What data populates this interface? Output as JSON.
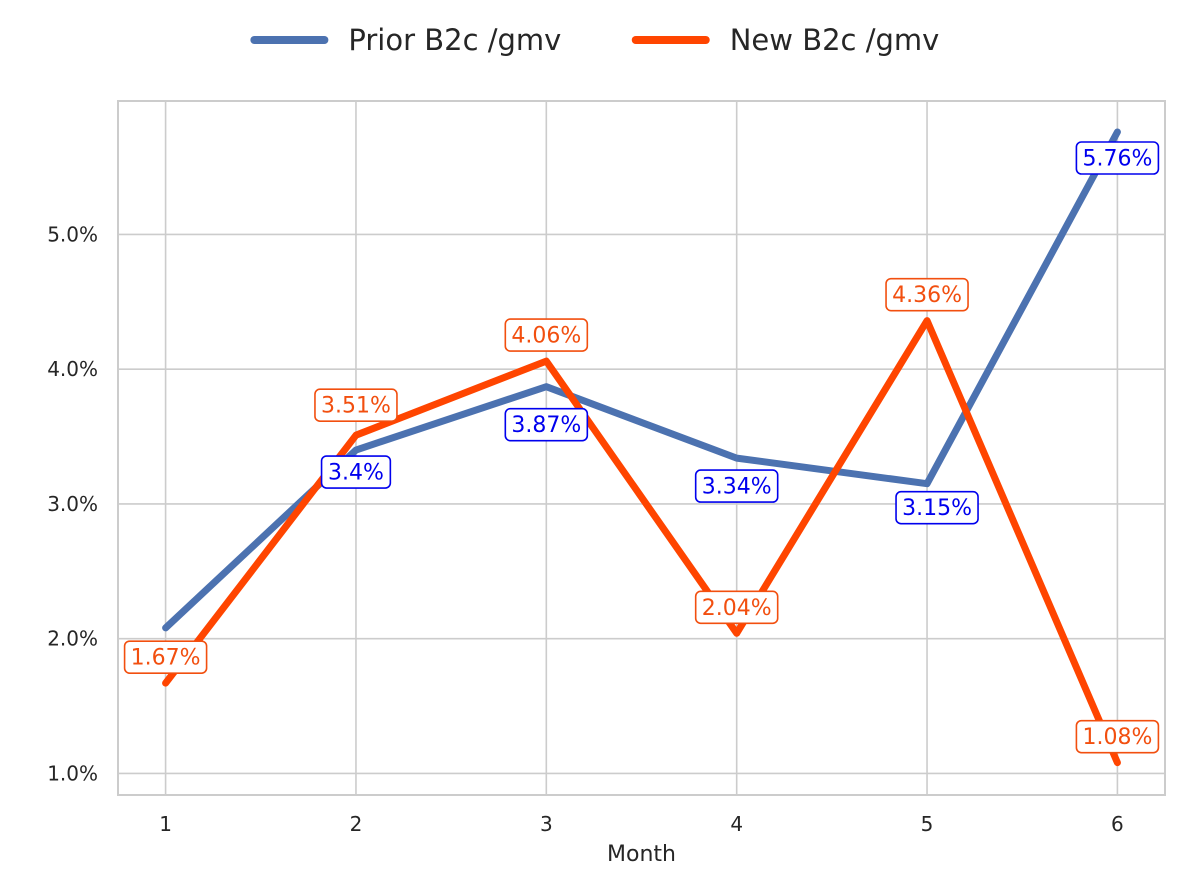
{
  "chart_data": {
    "type": "line",
    "title": "",
    "xlabel": "Month",
    "ylabel": "",
    "x": [
      1,
      2,
      3,
      4,
      5,
      6
    ],
    "x_tick_labels": [
      "1",
      "2",
      "3",
      "4",
      "5",
      "6"
    ],
    "xlim": [
      0.75,
      6.25
    ],
    "ylim": [
      0.84,
      5.99
    ],
    "y_ticks": [
      1.0,
      2.0,
      3.0,
      4.0,
      5.0
    ],
    "y_tick_labels": [
      "1.0%",
      "2.0%",
      "3.0%",
      "4.0%",
      "5.0%"
    ],
    "grid": true,
    "legend_position": "top-center",
    "series": [
      {
        "name": "Prior B2c /gmv",
        "color": "#4c72b0",
        "label_color": "#0000ee",
        "values": [
          2.08,
          3.4,
          3.87,
          3.34,
          3.15,
          5.76
        ],
        "data_labels": [
          "",
          "3.4%",
          "3.87%",
          "3.34%",
          "3.15%",
          "5.76%"
        ]
      },
      {
        "name": "New B2c /gmv",
        "color": "#ff4500",
        "label_color": "#f24f0f",
        "values": [
          1.67,
          3.51,
          4.06,
          2.04,
          4.36,
          1.08
        ],
        "data_labels": [
          "1.67%",
          "3.51%",
          "4.06%",
          "2.04%",
          "4.36%",
          "1.08%"
        ]
      }
    ]
  }
}
